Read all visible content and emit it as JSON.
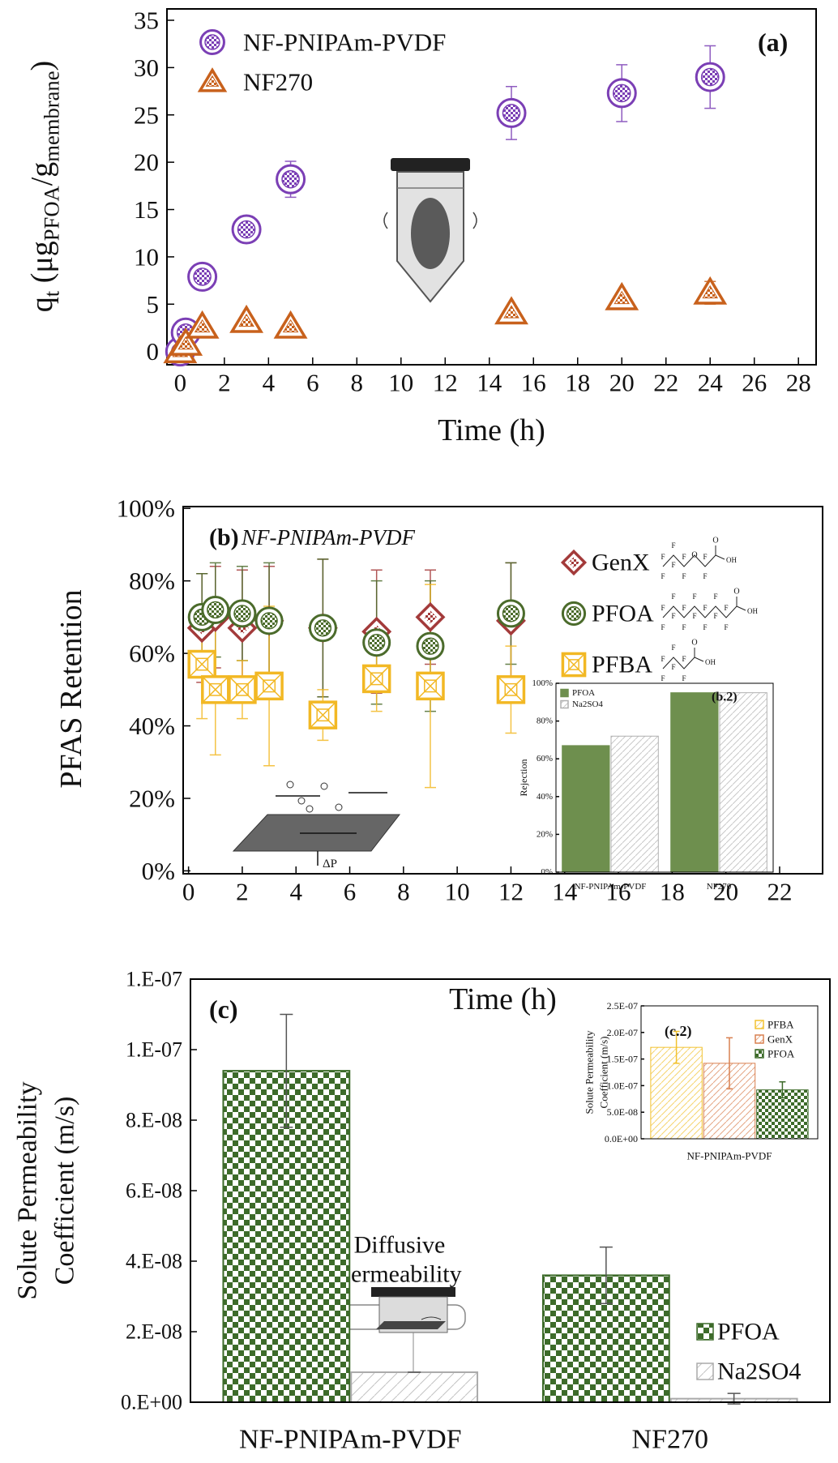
{
  "chart_data": [
    {
      "type": "scatter",
      "panel_label": "(a)",
      "x_label": "Time (h)",
      "y_label": [
        "q",
        "t",
        " (μg",
        "PFOA",
        "/g",
        "membrane",
        ")"
      ],
      "x": [
        0,
        0.25,
        1,
        3,
        5,
        15,
        20,
        24
      ],
      "xlim": [
        -0.6,
        28.8
      ],
      "xticks": [
        0,
        2,
        4,
        6,
        8,
        10,
        12,
        14,
        16,
        18,
        20,
        22,
        24,
        26,
        28
      ],
      "ylim": [
        -1.4,
        36.2
      ],
      "yticks": [
        0,
        5,
        10,
        15,
        20,
        25,
        30,
        35
      ],
      "legend": "upper left",
      "series": [
        {
          "name": "NF-PNIPAm-PVDF",
          "color": "#7b3fb5",
          "marker": "circle",
          "values": [
            0,
            2,
            7.9,
            12.9,
            18.2,
            25.2,
            27.3,
            29
          ],
          "errors": [
            0,
            0,
            0,
            0,
            1.9,
            2.8,
            3,
            3.3
          ]
        },
        {
          "name": "NF270",
          "color": "#c8611c",
          "marker": "triangle",
          "values": [
            0,
            0.8,
            2.6,
            3.2,
            2.6,
            4.1,
            5.6,
            6.2
          ],
          "errors": [
            0,
            0,
            0,
            0,
            0,
            0,
            0.6,
            1.2
          ]
        }
      ]
    },
    {
      "type": "scatter",
      "panel_label": "(b)",
      "subtitle": "NF-PNIPAm-PVDF",
      "x_label": "Time (h)",
      "y_label": "PFAS Retention",
      "annotation": "ΔP",
      "structure_atoms": {
        "fluorine": "F",
        "oxygen": "O",
        "hydroxyl": "OH"
      },
      "x": [
        0.5,
        1,
        2,
        3,
        5,
        7,
        9,
        12
      ],
      "xlim": [
        -0.2,
        23.6
      ],
      "xticks": [
        0,
        2,
        4,
        6,
        8,
        10,
        12,
        14,
        16,
        18,
        20,
        22
      ],
      "ylim": [
        -0.8,
        100.5
      ],
      "yticks": [
        {
          "value": 0,
          "label": "0%"
        },
        {
          "value": 20,
          "label": "20%"
        },
        {
          "value": 40,
          "label": "40%"
        },
        {
          "value": 60,
          "label": "60%"
        },
        {
          "value": 80,
          "label": "80%"
        },
        {
          "value": 100,
          "label": "100%"
        }
      ],
      "legend": "upper right",
      "series": [
        {
          "name": "GenX",
          "color": "#a33a3a",
          "marker": "diamond",
          "values": [
            67,
            70,
            67,
            69,
            67,
            66,
            70,
            69
          ],
          "errors": [
            15,
            14,
            16,
            15,
            19,
            17,
            13,
            16
          ]
        },
        {
          "name": "PFOA",
          "color": "#4b6b2b",
          "marker": "circle",
          "values": [
            70,
            72,
            71,
            69,
            67,
            63,
            62,
            71
          ],
          "errors": [
            12,
            13,
            13,
            16,
            19,
            17,
            18,
            14
          ]
        },
        {
          "name": "PFBA",
          "color": "#f2b824",
          "marker": "square",
          "values": [
            57,
            50,
            50,
            51,
            43,
            53,
            51,
            50
          ],
          "errors": [
            15,
            18,
            8,
            22,
            7,
            9,
            28,
            12
          ]
        }
      ]
    },
    {
      "type": "bar",
      "panel_label": "(b.2)",
      "y_label": "Rejection",
      "categories": [
        "NF-PNIPAm-PVDF",
        "NF270"
      ],
      "ylim": [
        0,
        100
      ],
      "yticks": [
        {
          "value": 0,
          "label": "0%"
        },
        {
          "value": 20,
          "label": "20%"
        },
        {
          "value": 40,
          "label": "40%"
        },
        {
          "value": 60,
          "label": "60%"
        },
        {
          "value": 80,
          "label": "80%"
        },
        {
          "value": 100,
          "label": "100%"
        }
      ],
      "legend": "upper left",
      "series": [
        {
          "name": "PFOA",
          "color": "#6e8f4e",
          "pattern": "solid",
          "values": [
            67,
            95
          ]
        },
        {
          "name": "Na2SO4",
          "color": "#b0b0b0",
          "pattern": "hatch",
          "values": [
            72,
            95
          ]
        }
      ]
    },
    {
      "type": "bar",
      "panel_label": "(c)",
      "y_label": [
        "Solute Permeability",
        "Coefficient (m/s)"
      ],
      "annotation": [
        "Diffusive",
        "Permeability"
      ],
      "categories": [
        "NF-PNIPAm-PVDF",
        "NF270"
      ],
      "ylim": [
        0,
        1.2e-07
      ],
      "yticks": [
        {
          "value": 0,
          "label": "0.E+00"
        },
        {
          "value": 2e-08,
          "label": "2.E-08"
        },
        {
          "value": 4e-08,
          "label": "4.E-08"
        },
        {
          "value": 6e-08,
          "label": "6.E-08"
        },
        {
          "value": 8e-08,
          "label": "8.E-08"
        },
        {
          "value": 1e-07,
          "label": "1.E-07"
        },
        {
          "value": 1.2e-07,
          "label": "1.E-07"
        }
      ],
      "legend": "lower right",
      "series": [
        {
          "name": "PFOA",
          "color": "#3d6b2a",
          "pattern": "check",
          "values": [
            9.4e-08,
            3.6e-08
          ],
          "errors": [
            1.6e-08,
            8e-09
          ]
        },
        {
          "name": "Na2SO4",
          "color": "#aaaaaa",
          "pattern": "hatch",
          "values": [
            8.5e-09,
            1e-09
          ],
          "errors": [
            0,
            1.5e-09
          ]
        }
      ]
    },
    {
      "type": "bar",
      "panel_label": "(c.2)",
      "y_label": [
        "Solute Permeability",
        "Coefficient (m/s)"
      ],
      "categories": [
        "NF-PNIPAm-PVDF"
      ],
      "ylim": [
        0,
        2.5e-07
      ],
      "yticks": [
        {
          "value": 0,
          "label": "0.0E+00"
        },
        {
          "value": 5e-08,
          "label": "5.0E-08"
        },
        {
          "value": 1e-07,
          "label": "1.0E-07"
        },
        {
          "value": 1.5e-07,
          "label": "1.5E-07"
        },
        {
          "value": 2e-07,
          "label": "2.0E-07"
        },
        {
          "value": 2.5e-07,
          "label": "2.5E-07"
        }
      ],
      "legend": "upper right",
      "series": [
        {
          "name": "PFBA",
          "color": "#f2c230",
          "pattern": "hatch",
          "values": [
            1.72e-07
          ],
          "errors": [
            3e-08
          ]
        },
        {
          "name": "GenX",
          "color": "#d98050",
          "pattern": "hatch",
          "values": [
            1.42e-07
          ],
          "errors": [
            4.8e-08
          ]
        },
        {
          "name": "PFOA",
          "color": "#3d6b2a",
          "pattern": "check",
          "values": [
            9.2e-08
          ],
          "errors": [
            1.5e-08
          ]
        }
      ]
    }
  ]
}
